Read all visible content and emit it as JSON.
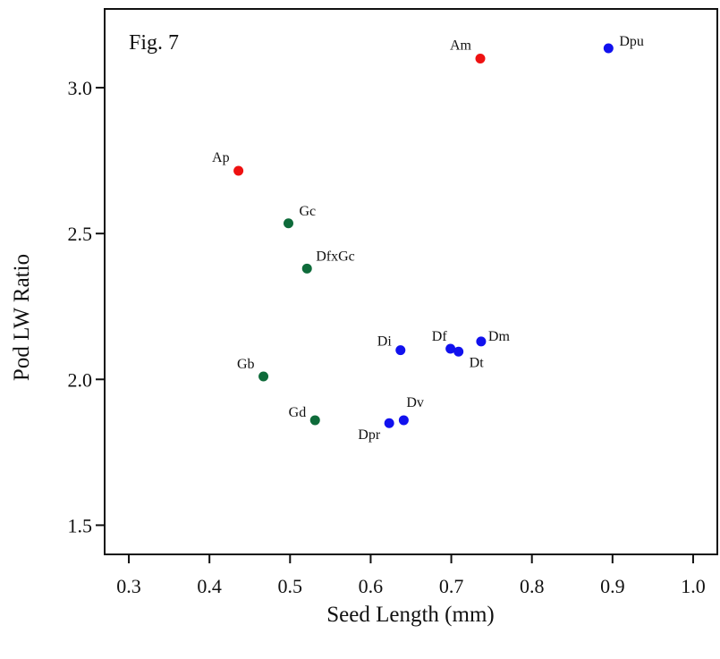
{
  "chart_data": {
    "type": "scatter",
    "panel_label": "Fig. 7",
    "xlabel": "Seed Length (mm)",
    "ylabel": "Pod LW Ratio",
    "xlim": [
      0.27,
      1.03
    ],
    "ylim": [
      1.4,
      3.27
    ],
    "x_ticks": [
      0.3,
      0.4,
      0.5,
      0.6,
      0.7,
      0.8,
      0.9,
      1.0
    ],
    "x_tick_labels": [
      "0.3",
      "0.4",
      "0.5",
      "0.6",
      "0.7",
      "0.8",
      "0.9",
      "1.0"
    ],
    "y_ticks": [
      1.5,
      2.0,
      2.5,
      3.0
    ],
    "y_tick_labels": [
      "1.5",
      "2.0",
      "2.5",
      "3.0"
    ],
    "grid": false,
    "colors": {
      "red": "#ee1111",
      "green": "#0e6b3a",
      "blue": "#1111ee"
    },
    "points": [
      {
        "label": "Am",
        "x": 0.736,
        "y": 3.1,
        "color": "red"
      },
      {
        "label": "Ap",
        "x": 0.436,
        "y": 2.715,
        "color": "red"
      },
      {
        "label": "Dpu",
        "x": 0.895,
        "y": 3.135,
        "color": "blue"
      },
      {
        "label": "Gc",
        "x": 0.498,
        "y": 2.535,
        "color": "green"
      },
      {
        "label": "DfxGc",
        "x": 0.521,
        "y": 2.38,
        "color": "green"
      },
      {
        "label": "Di",
        "x": 0.637,
        "y": 2.1,
        "color": "blue"
      },
      {
        "label": "Df",
        "x": 0.699,
        "y": 2.105,
        "color": "blue"
      },
      {
        "label": "Dt",
        "x": 0.709,
        "y": 2.095,
        "color": "blue"
      },
      {
        "label": "Dm",
        "x": 0.737,
        "y": 2.13,
        "color": "blue"
      },
      {
        "label": "Gb",
        "x": 0.467,
        "y": 2.01,
        "color": "green"
      },
      {
        "label": "Gd",
        "x": 0.531,
        "y": 1.86,
        "color": "green"
      },
      {
        "label": "Dv",
        "x": 0.641,
        "y": 1.86,
        "color": "blue"
      },
      {
        "label": "Dpr",
        "x": 0.623,
        "y": 1.85,
        "color": "blue"
      }
    ]
  }
}
